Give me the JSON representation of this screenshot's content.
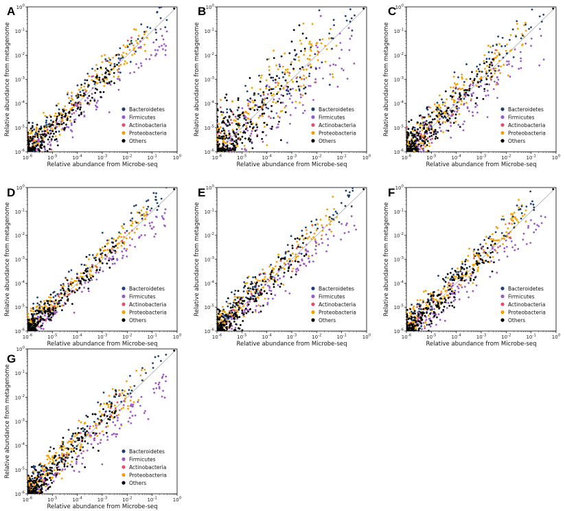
{
  "figure": {
    "panel_letters": [
      "A",
      "B",
      "C",
      "D",
      "E",
      "F",
      "G"
    ],
    "xlabel": "Relative abundance from Microbe-seq",
    "ylabel": "Relative abundance from metagenome",
    "tick_labels": [
      "10^-6",
      "10^-5",
      "10^-4",
      "10^-3",
      "10^-2",
      "10^-1",
      "10^0"
    ]
  },
  "legend": [
    {
      "name": "Bacteroidetes",
      "color": "#1f3f6e"
    },
    {
      "name": "Firmicutes",
      "color": "#9b59c8"
    },
    {
      "name": "Actinobacteria",
      "color": "#e0506a"
    },
    {
      "name": "Proteobacteria",
      "color": "#f5a000"
    },
    {
      "name": "Others",
      "color": "#000000"
    }
  ],
  "chart_data": [
    {
      "type": "scatter",
      "panel": "A",
      "xlim": [
        1e-06,
        1
      ],
      "ylim": [
        1e-06,
        1
      ],
      "xscale": "log",
      "yscale": "log",
      "reference_line": "y=x",
      "seed": 11,
      "spread": 0.35,
      "firmicutes_offset": -0.9,
      "series": [
        "Bacteroidetes",
        "Firmicutes",
        "Actinobacteria",
        "Proteobacteria",
        "Others"
      ]
    },
    {
      "type": "scatter",
      "panel": "B",
      "xlim": [
        1e-06,
        1
      ],
      "ylim": [
        1e-06,
        1
      ],
      "xscale": "log",
      "yscale": "log",
      "reference_line": "y=x",
      "seed": 23,
      "spread": 0.7,
      "firmicutes_offset": -1.2,
      "series": [
        "Bacteroidetes",
        "Firmicutes",
        "Actinobacteria",
        "Proteobacteria",
        "Others"
      ]
    },
    {
      "type": "scatter",
      "panel": "C",
      "xlim": [
        1e-06,
        1
      ],
      "ylim": [
        1e-06,
        1
      ],
      "xscale": "log",
      "yscale": "log",
      "reference_line": "y=x",
      "seed": 37,
      "spread": 0.4,
      "firmicutes_offset": -1.0,
      "series": [
        "Bacteroidetes",
        "Firmicutes",
        "Actinobacteria",
        "Proteobacteria",
        "Others"
      ]
    },
    {
      "type": "scatter",
      "panel": "D",
      "xlim": [
        1e-06,
        1
      ],
      "ylim": [
        1e-06,
        1
      ],
      "xscale": "log",
      "yscale": "log",
      "reference_line": "y=x",
      "seed": 41,
      "spread": 0.25,
      "firmicutes_offset": -0.6,
      "series": [
        "Bacteroidetes",
        "Firmicutes",
        "Actinobacteria",
        "Proteobacteria",
        "Others"
      ]
    },
    {
      "type": "scatter",
      "panel": "E",
      "xlim": [
        1e-06,
        1
      ],
      "ylim": [
        1e-06,
        1
      ],
      "xscale": "log",
      "yscale": "log",
      "reference_line": "y=x",
      "seed": 53,
      "spread": 0.35,
      "firmicutes_offset": -0.8,
      "series": [
        "Bacteroidetes",
        "Firmicutes",
        "Actinobacteria",
        "Proteobacteria",
        "Others"
      ]
    },
    {
      "type": "scatter",
      "panel": "F",
      "xlim": [
        1e-06,
        1
      ],
      "ylim": [
        1e-06,
        1
      ],
      "xscale": "log",
      "yscale": "log",
      "reference_line": "y=x",
      "seed": 67,
      "spread": 0.3,
      "firmicutes_offset": -0.8,
      "series": [
        "Bacteroidetes",
        "Firmicutes",
        "Actinobacteria",
        "Proteobacteria",
        "Others"
      ]
    },
    {
      "type": "scatter",
      "panel": "G",
      "xlim": [
        1e-06,
        1
      ],
      "ylim": [
        1e-06,
        1
      ],
      "xscale": "log",
      "yscale": "log",
      "reference_line": "y=x",
      "seed": 79,
      "spread": 0.35,
      "firmicutes_offset": -0.9,
      "series": [
        "Bacteroidetes",
        "Firmicutes",
        "Actinobacteria",
        "Proteobacteria",
        "Others"
      ]
    }
  ]
}
